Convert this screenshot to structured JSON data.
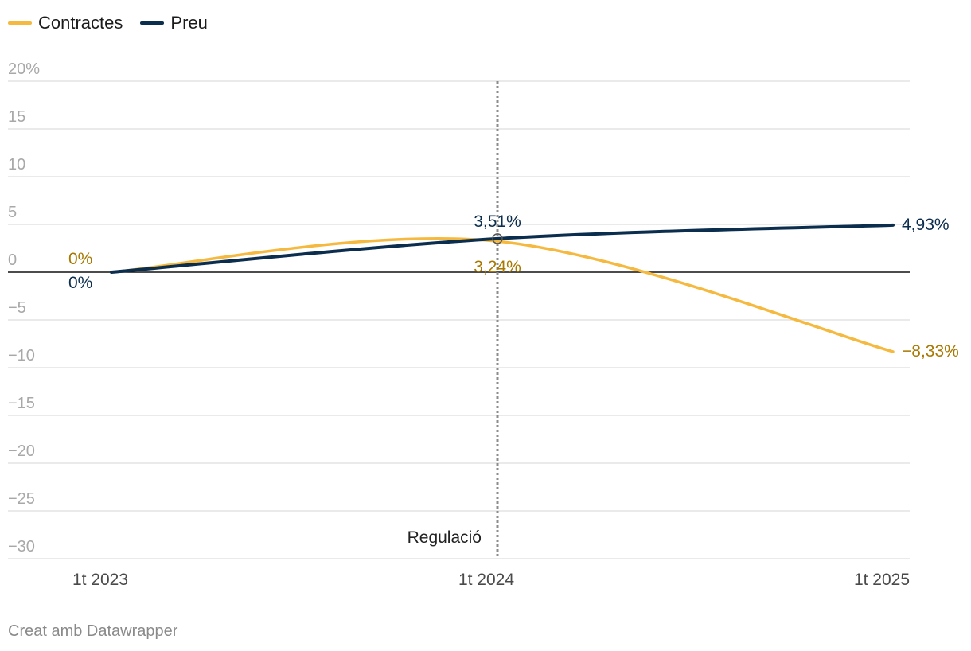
{
  "chart_data": {
    "type": "line",
    "x_labels": [
      "1t 2023",
      "1t 2024",
      "1t 2025"
    ],
    "ylim": [
      -30,
      20
    ],
    "y_ticks": [
      20,
      15,
      10,
      5,
      0,
      -5,
      -10,
      -15,
      -20,
      -25,
      -30
    ],
    "y_tick_labels": [
      "20%",
      "15",
      "10",
      "5",
      "0",
      "−5",
      "−10",
      "−15",
      "−20",
      "−25",
      "−30"
    ],
    "grid": true,
    "legend_position": "top-left",
    "series": [
      {
        "name": "Contractes",
        "color": "#f5b93f",
        "label_color": "#a87800",
        "values": [
          0,
          3.24,
          -8.33
        ],
        "labels": [
          "0%",
          "3,24%",
          "−8,33%"
        ]
      },
      {
        "name": "Preu",
        "color": "#0c2e4e",
        "label_color": "#0c2e4e",
        "values": [
          0,
          3.51,
          4.93
        ],
        "labels": [
          "0%",
          "3,51%",
          "4,93%"
        ]
      }
    ],
    "annotation": {
      "x_index": 1,
      "text": "Regulació"
    }
  },
  "footer": "Creat amb Datawrapper"
}
